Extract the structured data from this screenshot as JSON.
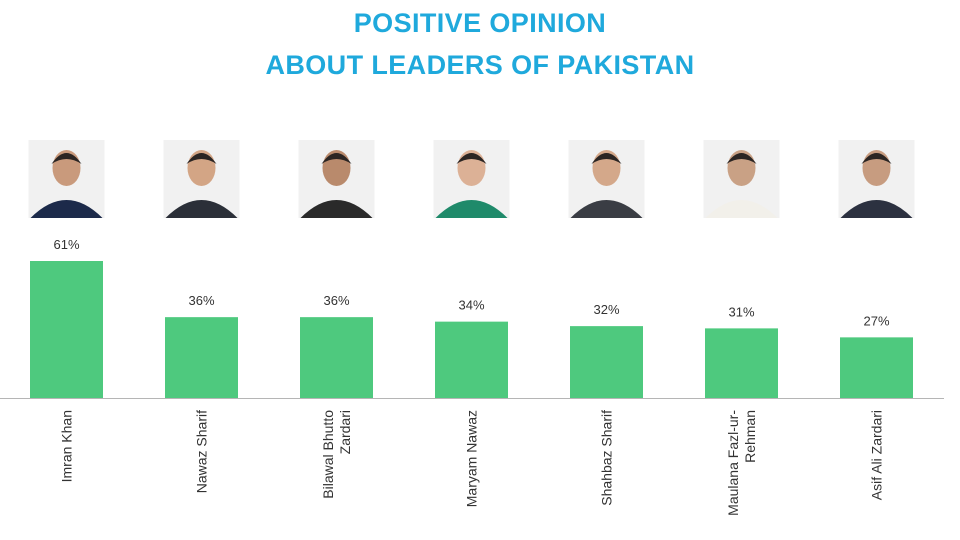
{
  "colors": {
    "title": "#1fa9dc",
    "bar": "#4ec97e",
    "axis": "#b5b5b5",
    "text": "#333333"
  },
  "header": {
    "line1": "POSITIVE OPINION",
    "line2": "ABOUT LEADERS OF PAKISTAN"
  },
  "chart_data": {
    "type": "bar",
    "title": "POSITIVE OPINION ABOUT LEADERS OF PAKISTAN",
    "categories": [
      [
        "Imran Khan"
      ],
      [
        "Nawaz Sharif"
      ],
      [
        "Bilawal Bhutto",
        "Zardari"
      ],
      [
        "Maryam Nawaz"
      ],
      [
        "Shahbaz Sharif"
      ],
      [
        "Maulana Fazl-ur-",
        "Rehman"
      ],
      [
        "Asif Ali Zardari"
      ]
    ],
    "values": [
      61,
      36,
      36,
      34,
      32,
      31,
      27
    ],
    "data_labels": [
      "61%",
      "36%",
      "36%",
      "34%",
      "32%",
      "31%",
      "27%"
    ],
    "ylim": [
      0,
      61
    ],
    "grid": false,
    "legend": "none"
  }
}
